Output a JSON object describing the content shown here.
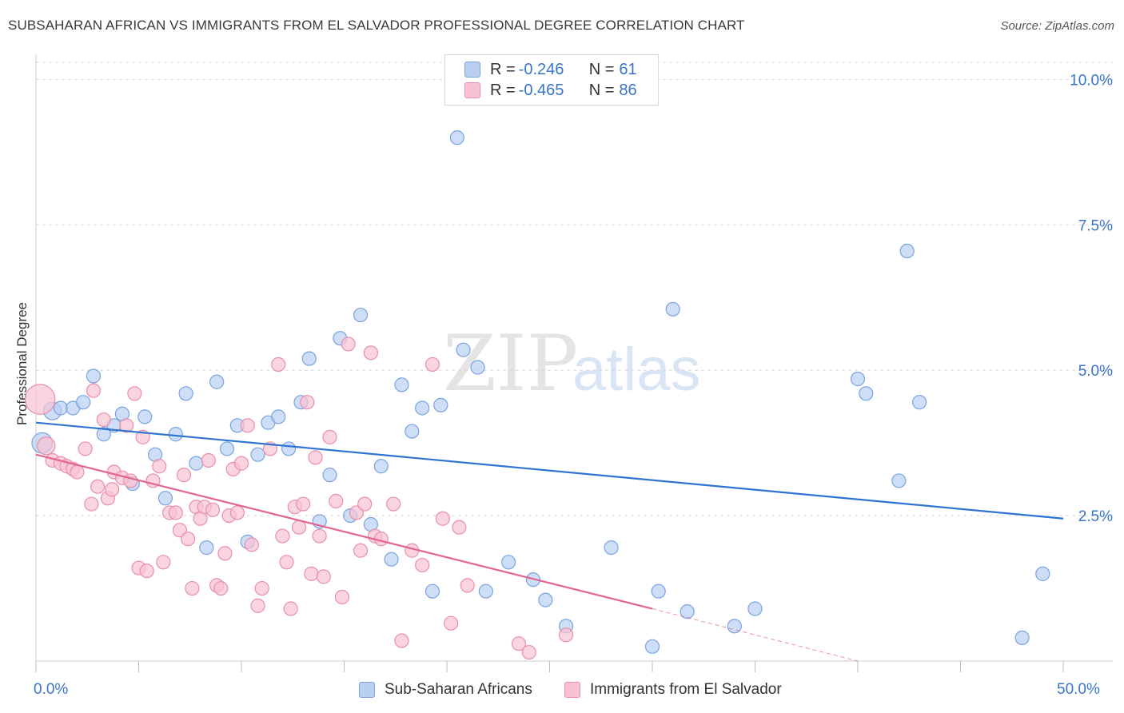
{
  "title": "SUBSAHARAN AFRICAN VS IMMIGRANTS FROM EL SALVADOR PROFESSIONAL DEGREE CORRELATION CHART",
  "source": "Source: ZipAtlas.com",
  "watermark": {
    "zip": "ZIP",
    "atlas": "atlas"
  },
  "colors": {
    "blue_fill": "#b9d0f3",
    "blue_stroke": "#7aa3e0",
    "blue_line": "#2f73d0",
    "pink_fill": "#f8c2d2",
    "pink_stroke": "#e98fab",
    "pink_line": "#e0648f",
    "axis_text": "#3a74c8",
    "grid": "#d8d8d8"
  },
  "legend_top": [
    {
      "r_label": "R = ",
      "r_value": "-0.246",
      "n_label": "N = ",
      "n_value": "61"
    },
    {
      "r_label": "R = ",
      "r_value": "-0.465",
      "n_label": "N = ",
      "n_value": "86"
    }
  ],
  "chart_data": {
    "type": "scatter",
    "ylabel": "Professional Degree",
    "xlim": [
      0,
      50
    ],
    "ylim": [
      0,
      10.5
    ],
    "x_tick_labels": [
      "0.0%",
      "50.0%"
    ],
    "y_ticks": [
      2.5,
      5.0,
      7.5,
      10.0
    ],
    "y_tick_labels": [
      "2.5%",
      "5.0%",
      "7.5%",
      "10.0%"
    ],
    "grid": "horizontal dashed",
    "series": [
      {
        "name": "Sub-Saharan Africans",
        "trend": {
          "x": [
            0,
            50
          ],
          "y": [
            4.1,
            2.45
          ]
        },
        "points": [
          [
            0.3,
            3.75,
            1.5
          ],
          [
            0.8,
            4.3,
            1.3
          ],
          [
            1.2,
            4.35,
            1
          ],
          [
            1.8,
            4.35,
            1
          ],
          [
            2.3,
            4.45,
            1
          ],
          [
            2.8,
            4.9,
            1
          ],
          [
            3.3,
            3.9,
            1
          ],
          [
            3.8,
            4.05,
            1
          ],
          [
            4.2,
            4.25,
            1
          ],
          [
            4.7,
            3.05,
            1
          ],
          [
            5.3,
            4.2,
            1
          ],
          [
            5.8,
            3.55,
            1
          ],
          [
            6.3,
            2.8,
            1
          ],
          [
            6.8,
            3.9,
            1
          ],
          [
            7.3,
            4.6,
            1
          ],
          [
            7.8,
            3.4,
            1
          ],
          [
            8.3,
            1.95,
            1
          ],
          [
            8.8,
            4.8,
            1
          ],
          [
            9.3,
            3.65,
            1
          ],
          [
            9.8,
            4.05,
            1
          ],
          [
            10.3,
            2.05,
            1
          ],
          [
            10.8,
            3.55,
            1
          ],
          [
            11.3,
            4.1,
            1
          ],
          [
            11.8,
            4.2,
            1
          ],
          [
            12.3,
            3.65,
            1
          ],
          [
            12.9,
            4.45,
            1
          ],
          [
            13.3,
            5.2,
            1
          ],
          [
            13.8,
            2.4,
            1
          ],
          [
            14.3,
            3.2,
            1
          ],
          [
            14.8,
            5.55,
            1
          ],
          [
            15.3,
            2.5,
            1
          ],
          [
            15.8,
            5.95,
            1
          ],
          [
            16.3,
            2.35,
            1
          ],
          [
            16.8,
            3.35,
            1
          ],
          [
            17.3,
            1.75,
            1
          ],
          [
            17.8,
            4.75,
            1
          ],
          [
            18.3,
            3.95,
            1
          ],
          [
            18.8,
            4.35,
            1
          ],
          [
            19.3,
            1.2,
            1
          ],
          [
            19.7,
            4.4,
            1
          ],
          [
            20.5,
            9.0,
            1
          ],
          [
            20.8,
            5.35,
            1
          ],
          [
            21.5,
            5.05,
            1
          ],
          [
            21.9,
            1.2,
            1
          ],
          [
            23.0,
            1.7,
            1
          ],
          [
            24.2,
            1.4,
            1
          ],
          [
            24.8,
            1.05,
            1
          ],
          [
            25.8,
            0.6,
            1
          ],
          [
            28.0,
            1.95,
            1
          ],
          [
            30.0,
            0.25,
            1
          ],
          [
            30.3,
            1.2,
            1
          ],
          [
            31.0,
            6.05,
            1
          ],
          [
            31.7,
            0.85,
            1
          ],
          [
            34.0,
            0.6,
            1
          ],
          [
            35.0,
            0.9,
            1
          ],
          [
            40.0,
            4.85,
            1
          ],
          [
            40.4,
            4.6,
            1
          ],
          [
            42.0,
            3.1,
            1
          ],
          [
            42.4,
            7.05,
            1
          ],
          [
            43.0,
            4.45,
            1
          ],
          [
            48.0,
            0.4,
            1
          ],
          [
            49.0,
            1.5,
            1
          ]
        ]
      },
      {
        "name": "Immigrants from El Salvador",
        "trend": {
          "x": [
            0,
            30
          ],
          "y": [
            3.55,
            0.9
          ]
        },
        "trend_dashed": {
          "x": [
            30,
            40
          ],
          "y": [
            0.9,
            0.0
          ]
        },
        "points": [
          [
            0.2,
            4.5,
            2.2
          ],
          [
            0.5,
            3.7,
            1.3
          ],
          [
            0.8,
            3.45,
            1
          ],
          [
            1.2,
            3.4,
            1
          ],
          [
            1.5,
            3.35,
            1
          ],
          [
            1.8,
            3.3,
            1
          ],
          [
            2.0,
            3.25,
            1
          ],
          [
            2.4,
            3.65,
            1
          ],
          [
            2.7,
            2.7,
            1
          ],
          [
            2.8,
            4.65,
            1
          ],
          [
            3.0,
            3.0,
            1
          ],
          [
            3.3,
            4.15,
            1
          ],
          [
            3.5,
            2.8,
            1
          ],
          [
            3.7,
            2.95,
            1
          ],
          [
            3.8,
            3.25,
            1
          ],
          [
            4.2,
            3.15,
            1
          ],
          [
            4.4,
            4.05,
            1
          ],
          [
            4.6,
            3.1,
            1
          ],
          [
            4.8,
            4.6,
            1
          ],
          [
            5.0,
            1.6,
            1
          ],
          [
            5.2,
            3.85,
            1
          ],
          [
            5.4,
            1.55,
            1
          ],
          [
            5.7,
            3.1,
            1
          ],
          [
            6.0,
            3.35,
            1
          ],
          [
            6.2,
            1.7,
            1
          ],
          [
            6.5,
            2.55,
            1
          ],
          [
            6.8,
            2.55,
            1
          ],
          [
            7.0,
            2.25,
            1
          ],
          [
            7.2,
            3.2,
            1
          ],
          [
            7.4,
            2.1,
            1
          ],
          [
            7.6,
            1.25,
            1
          ],
          [
            7.8,
            2.65,
            1
          ],
          [
            8.0,
            2.45,
            1
          ],
          [
            8.2,
            2.65,
            1
          ],
          [
            8.4,
            3.45,
            1
          ],
          [
            8.6,
            2.6,
            1
          ],
          [
            8.8,
            1.3,
            1
          ],
          [
            9.0,
            1.25,
            1
          ],
          [
            9.2,
            1.85,
            1
          ],
          [
            9.4,
            2.5,
            1
          ],
          [
            9.6,
            3.3,
            1
          ],
          [
            9.8,
            2.55,
            1
          ],
          [
            10.0,
            3.4,
            1
          ],
          [
            10.3,
            4.05,
            1
          ],
          [
            10.5,
            2.0,
            1
          ],
          [
            10.8,
            0.95,
            1
          ],
          [
            11.0,
            1.25,
            1
          ],
          [
            11.4,
            3.65,
            1
          ],
          [
            11.8,
            5.1,
            1
          ],
          [
            12.0,
            2.15,
            1
          ],
          [
            12.2,
            1.7,
            1
          ],
          [
            12.4,
            0.9,
            1
          ],
          [
            12.6,
            2.65,
            1
          ],
          [
            12.8,
            2.3,
            1
          ],
          [
            13.0,
            2.7,
            1
          ],
          [
            13.2,
            4.45,
            1
          ],
          [
            13.4,
            1.5,
            1
          ],
          [
            13.6,
            3.5,
            1
          ],
          [
            13.8,
            2.15,
            1
          ],
          [
            14.0,
            1.45,
            1
          ],
          [
            14.3,
            3.85,
            1
          ],
          [
            14.6,
            2.75,
            1
          ],
          [
            14.9,
            1.1,
            1
          ],
          [
            15.2,
            5.45,
            1
          ],
          [
            15.6,
            2.55,
            1
          ],
          [
            15.8,
            1.9,
            1
          ],
          [
            16.0,
            2.7,
            1
          ],
          [
            16.3,
            5.3,
            1
          ],
          [
            16.5,
            2.15,
            1
          ],
          [
            16.8,
            2.1,
            1
          ],
          [
            17.4,
            2.7,
            1
          ],
          [
            17.8,
            0.35,
            1
          ],
          [
            18.3,
            1.9,
            1
          ],
          [
            18.8,
            1.65,
            1
          ],
          [
            19.3,
            5.1,
            1
          ],
          [
            19.8,
            2.45,
            1
          ],
          [
            20.2,
            0.65,
            1
          ],
          [
            20.6,
            2.3,
            1
          ],
          [
            21.0,
            1.3,
            1
          ],
          [
            23.5,
            0.3,
            1
          ],
          [
            24.0,
            0.15,
            1
          ],
          [
            25.8,
            0.45,
            1
          ]
        ]
      }
    ]
  }
}
